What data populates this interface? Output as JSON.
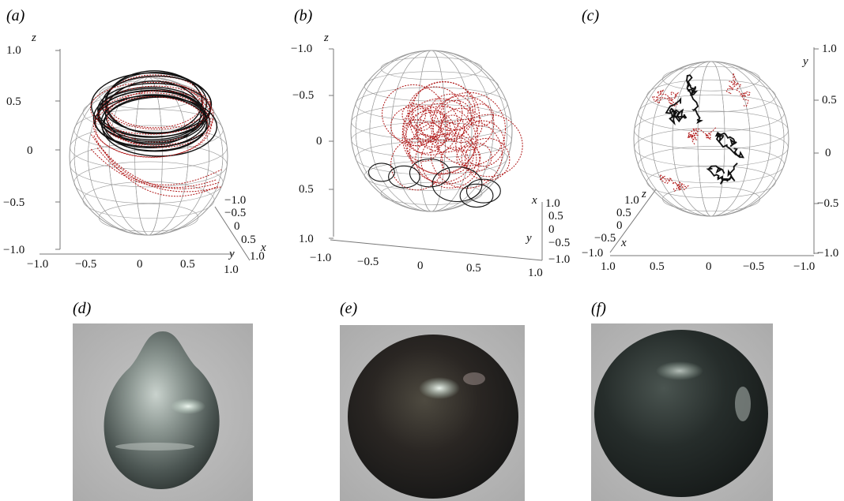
{
  "panels": [
    {
      "id": "a",
      "label": "(a)",
      "z_axis": {
        "name": "z",
        "ticks": [
          "1.0",
          "0.5",
          "0",
          "−0.5",
          "−1.0"
        ]
      },
      "x_axis": {
        "name": "",
        "ticks": [
          "−1.0",
          "−0.5",
          "0",
          "0.5",
          "1.0"
        ]
      },
      "depth_axis": {
        "name": "x",
        "ticks": [
          "−1.0",
          "−0.5",
          "0",
          "0.5",
          "1.0"
        ],
        "second_name": "y"
      }
    },
    {
      "id": "b",
      "label": "(b)",
      "z_axis": {
        "name": "z",
        "ticks": [
          "−1.0",
          "−0.5",
          "0",
          "0.5",
          "1.0"
        ]
      },
      "x_axis": {
        "name": "",
        "ticks": [
          "−1.0",
          "−0.5",
          "0",
          "0.5",
          "1.0"
        ]
      },
      "depth_axis": {
        "name": "x",
        "ticks": [
          "1.0",
          "0.5",
          "0",
          "−0.5",
          "−1.0"
        ],
        "second_name": "y"
      }
    },
    {
      "id": "c",
      "label": "(c)",
      "y_axis": {
        "name": "y",
        "ticks": [
          "1.0",
          "0.5",
          "0",
          "−0.5",
          "−1.0"
        ]
      },
      "x_axis": {
        "name": "",
        "ticks": [
          "1.0",
          "0.5",
          "0",
          "−0.5",
          "−1.0"
        ]
      },
      "depth_axis": {
        "name": "z",
        "ticks": [
          "1.0",
          "0.5",
          "0",
          "−0.5",
          "−1.0"
        ],
        "second_name": "x"
      }
    }
  ],
  "photos": [
    {
      "id": "d",
      "label": "(d)",
      "shape": "drop"
    },
    {
      "id": "e",
      "label": "(e)",
      "shape": "round"
    },
    {
      "id": "f",
      "label": "(f)",
      "shape": "round"
    }
  ],
  "colors": {
    "wireframe": "#9a9a9a",
    "trajectory_red": "#b01818",
    "trajectory_black": "#111111",
    "photo_background": "#b9b9b9",
    "pearl_dark": "#1f2524"
  }
}
